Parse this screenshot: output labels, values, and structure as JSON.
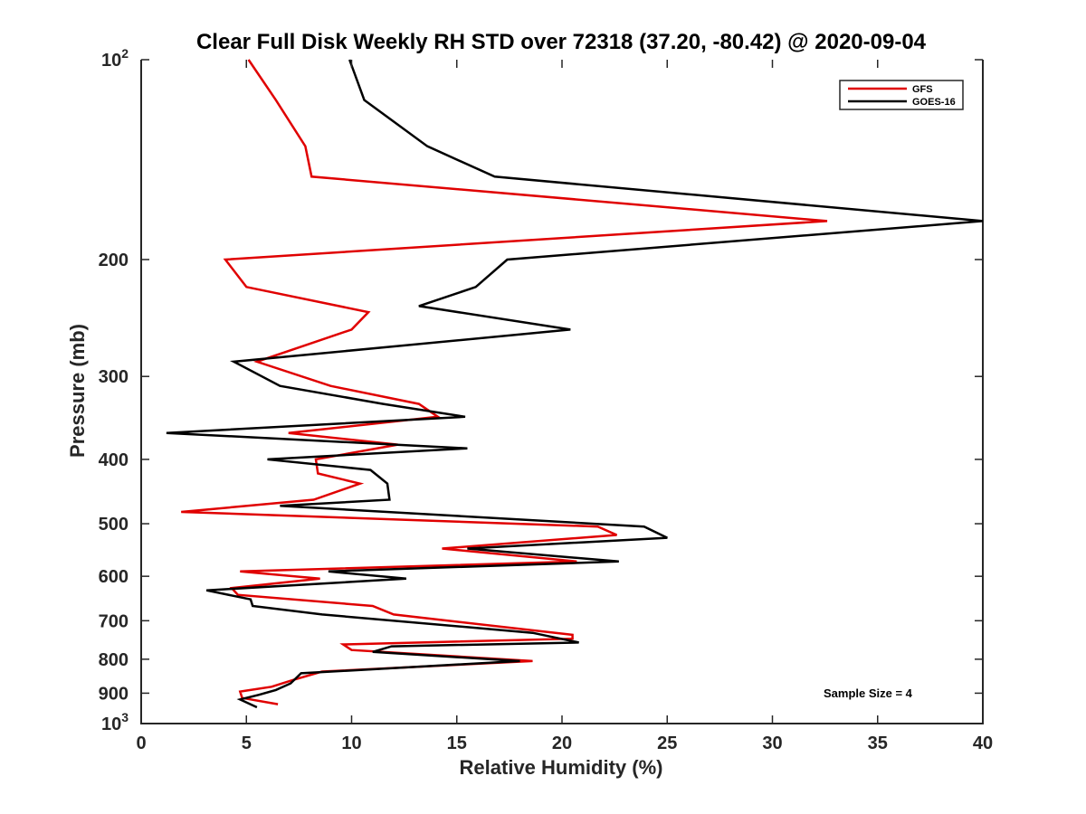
{
  "chart_data": {
    "type": "line",
    "title": "Clear Full Disk Weekly RH STD over 72318 (37.20, -80.42) @ 2020-09-04",
    "xlabel": "Relative Humidity (%)",
    "ylabel": "Pressure (mb)",
    "xlim": [
      0,
      40
    ],
    "ylim": [
      100,
      1000
    ],
    "yscale": "log",
    "y_reversed": true,
    "grid": false,
    "legend_position": "top-right",
    "x_ticks": [
      0,
      5,
      10,
      15,
      20,
      25,
      30,
      35,
      40
    ],
    "x_tick_labels": [
      "0",
      "5",
      "10",
      "15",
      "20",
      "25",
      "30",
      "35",
      "40"
    ],
    "y_ticks": [
      100,
      200,
      300,
      400,
      500,
      600,
      700,
      800,
      900,
      1000
    ],
    "y_tick_labels": [
      {
        "base": "10",
        "exp": "2"
      },
      {
        "base": "200",
        "exp": ""
      },
      {
        "base": "300",
        "exp": ""
      },
      {
        "base": "400",
        "exp": ""
      },
      {
        "base": "500",
        "exp": ""
      },
      {
        "base": "600",
        "exp": ""
      },
      {
        "base": "700",
        "exp": ""
      },
      {
        "base": "800",
        "exp": ""
      },
      {
        "base": "900",
        "exp": ""
      },
      {
        "base": "10",
        "exp": "3"
      }
    ],
    "series": [
      {
        "name": "GFS",
        "color": "#e00000",
        "points": [
          [
            5.1,
            100
          ],
          [
            6.4,
            115
          ],
          [
            7.8,
            135
          ],
          [
            8.1,
            150
          ],
          [
            32.6,
            175
          ],
          [
            4.0,
            200
          ],
          [
            5.0,
            220
          ],
          [
            10.8,
            240
          ],
          [
            10.0,
            255
          ],
          [
            5.5,
            285
          ],
          [
            9.0,
            310
          ],
          [
            13.2,
            330
          ],
          [
            14.1,
            345
          ],
          [
            7.0,
            365
          ],
          [
            12.2,
            380
          ],
          [
            8.3,
            400
          ],
          [
            8.4,
            420
          ],
          [
            10.4,
            435
          ],
          [
            8.2,
            460
          ],
          [
            1.9,
            480
          ],
          [
            21.7,
            505
          ],
          [
            22.6,
            520
          ],
          [
            14.3,
            545
          ],
          [
            20.7,
            570
          ],
          [
            4.7,
            590
          ],
          [
            8.5,
            605
          ],
          [
            4.3,
            625
          ],
          [
            4.6,
            640
          ],
          [
            11.0,
            665
          ],
          [
            12.0,
            685
          ],
          [
            20.5,
            735
          ],
          [
            20.5,
            745
          ],
          [
            9.6,
            760
          ],
          [
            10.0,
            775
          ],
          [
            18.6,
            805
          ],
          [
            8.6,
            835
          ],
          [
            7.2,
            860
          ],
          [
            6.2,
            880
          ],
          [
            4.7,
            895
          ],
          [
            4.8,
            915
          ],
          [
            6.5,
            935
          ]
        ]
      },
      {
        "name": "GOES-16",
        "color": "#000000",
        "points": [
          [
            9.9,
            100
          ],
          [
            10.6,
            115
          ],
          [
            13.6,
            135
          ],
          [
            16.8,
            150
          ],
          [
            40.0,
            175
          ],
          [
            17.4,
            200
          ],
          [
            15.9,
            220
          ],
          [
            13.2,
            235
          ],
          [
            20.4,
            255
          ],
          [
            4.4,
            285
          ],
          [
            6.6,
            310
          ],
          [
            11.5,
            330
          ],
          [
            15.4,
            345
          ],
          [
            1.2,
            365
          ],
          [
            15.5,
            385
          ],
          [
            6.0,
            400
          ],
          [
            10.9,
            415
          ],
          [
            11.7,
            435
          ],
          [
            11.8,
            460
          ],
          [
            6.6,
            470
          ],
          [
            23.9,
            505
          ],
          [
            25.0,
            525
          ],
          [
            15.5,
            545
          ],
          [
            22.7,
            570
          ],
          [
            8.9,
            590
          ],
          [
            12.6,
            605
          ],
          [
            3.1,
            630
          ],
          [
            5.2,
            650
          ],
          [
            5.3,
            665
          ],
          [
            8.6,
            685
          ],
          [
            18.6,
            730
          ],
          [
            20.8,
            755
          ],
          [
            11.9,
            765
          ],
          [
            11.0,
            780
          ],
          [
            18.0,
            805
          ],
          [
            7.6,
            840
          ],
          [
            7.1,
            870
          ],
          [
            6.4,
            890
          ],
          [
            5.6,
            905
          ],
          [
            4.7,
            920
          ],
          [
            5.5,
            945
          ]
        ]
      }
    ],
    "annotations": [
      "Sample Size = 4"
    ]
  }
}
